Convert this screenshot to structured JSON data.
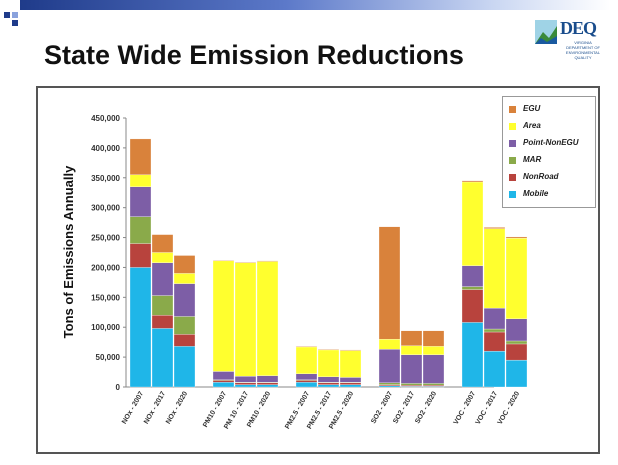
{
  "slide": {
    "title": "State Wide Emission Reductions",
    "logo_text": "DEQ",
    "logo_subtext": "VIRGINIA DEPARTMENT OF ENVIRONMENTAL QUALITY"
  },
  "chart_data": {
    "type": "bar",
    "stacked": true,
    "title": "",
    "xlabel": "",
    "ylabel": "Tons of Emissions Annually",
    "ylim": [
      0,
      450000
    ],
    "yticks": [
      "0",
      "50,000",
      "100,000",
      "150,000",
      "200,000",
      "250,000",
      "300,000",
      "350,000",
      "400,000",
      "450,000"
    ],
    "ytick_values": [
      0,
      50000,
      100000,
      150000,
      200000,
      250000,
      300000,
      350000,
      400000,
      450000
    ],
    "groups": [
      3,
      3,
      3,
      3,
      3
    ],
    "categories": [
      "NOx - 2007",
      "NOx - 2017",
      "NOx - 2020",
      "PM10 - 2007",
      "PM 10 - 2017",
      "PM10 - 2020",
      "PM2.5 - 2007",
      "PM2.5 - 2017",
      "PM2.5 - 2020",
      "SO2 - 2007",
      "SO2 - 2017",
      "SO2 - 2020",
      "VOC - 2007",
      "VOC - 2017",
      "VOC - 2020"
    ],
    "series": [
      {
        "name": "Mobile",
        "color": "#1fb6e8",
        "values": [
          200000,
          98000,
          68000,
          8000,
          4000,
          4000,
          8000,
          4000,
          4000,
          2000,
          1000,
          1000,
          108000,
          60000,
          45000
        ]
      },
      {
        "name": "NonRoad",
        "color": "#b8433d",
        "values": [
          40000,
          22000,
          20000,
          3000,
          3000,
          3000,
          3000,
          3000,
          3000,
          2000,
          2000,
          2000,
          55000,
          32000,
          27000
        ]
      },
      {
        "name": "MAR",
        "color": "#8aaa4a",
        "values": [
          45000,
          33000,
          30000,
          1000,
          1000,
          1000,
          1000,
          1000,
          1000,
          3000,
          3000,
          3000,
          5000,
          5000,
          5000
        ]
      },
      {
        "name": "Point-NonEGU",
        "color": "#7d5ea6",
        "values": [
          50000,
          55000,
          55000,
          14000,
          10000,
          11000,
          10000,
          9000,
          8000,
          56000,
          48000,
          48000,
          35000,
          35000,
          37000
        ]
      },
      {
        "name": "Area",
        "color": "#ffff2e",
        "values": [
          20000,
          17000,
          17000,
          185000,
          190000,
          191000,
          45000,
          45000,
          45000,
          17000,
          15000,
          14000,
          140000,
          133000,
          135000
        ]
      },
      {
        "name": "EGU",
        "color": "#d9823b",
        "values": [
          60000,
          30000,
          30000,
          1000,
          1000,
          1000,
          1000,
          1000,
          1000,
          188000,
          25000,
          26000,
          2000,
          2000,
          2000
        ]
      }
    ],
    "legend": {
      "placement": "top-right",
      "order": [
        "EGU",
        "Area",
        "Point-NonEGU",
        "MAR",
        "NonRoad",
        "Mobile"
      ]
    },
    "grid": false
  }
}
